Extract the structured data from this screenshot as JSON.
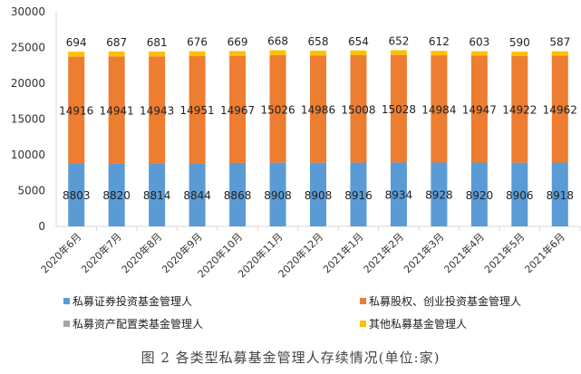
{
  "chart_data": {
    "type": "bar",
    "stacked": true,
    "title": "",
    "xlabel": "",
    "ylabel": "",
    "ylim": [
      0,
      30000
    ],
    "yticks": [
      0,
      5000,
      10000,
      15000,
      20000,
      25000,
      30000
    ],
    "grid": false,
    "legend_position": "bottom",
    "categories": [
      "2020年6月",
      "2020年7月",
      "2020年8月",
      "2020年9月",
      "2020年10月",
      "2020年11月",
      "2020年12月",
      "2021年1月",
      "2021年2月",
      "2021年3月",
      "2021年4月",
      "2021年5月",
      "2021年6月"
    ],
    "series": [
      {
        "name": "私募证券投资基金管理人",
        "color": "#5B9BD5",
        "labeled": true,
        "values": [
          8803,
          8820,
          8814,
          8844,
          8868,
          8908,
          8908,
          8916,
          8934,
          8928,
          8920,
          8906,
          8918
        ]
      },
      {
        "name": "私募股权、创业投资基金管理人",
        "color": "#ED7D31",
        "labeled": true,
        "values": [
          14916,
          14941,
          14943,
          14951,
          14967,
          15026,
          14986,
          15008,
          15028,
          14984,
          14947,
          14922,
          14962
        ]
      },
      {
        "name": "私募资产配置类基金管理人",
        "color": "#A5A5A5",
        "labeled": false,
        "values": [
          9,
          9,
          9,
          9,
          9,
          9,
          9,
          9,
          9,
          9,
          9,
          9,
          9
        ]
      },
      {
        "name": "其他私募基金管理人",
        "color": "#FFC000",
        "labeled": true,
        "values": [
          694,
          687,
          681,
          676,
          669,
          668,
          658,
          654,
          652,
          612,
          603,
          590,
          587
        ]
      }
    ]
  },
  "caption": "图 2  各类型私募基金管理人存续情况(单位:家)"
}
